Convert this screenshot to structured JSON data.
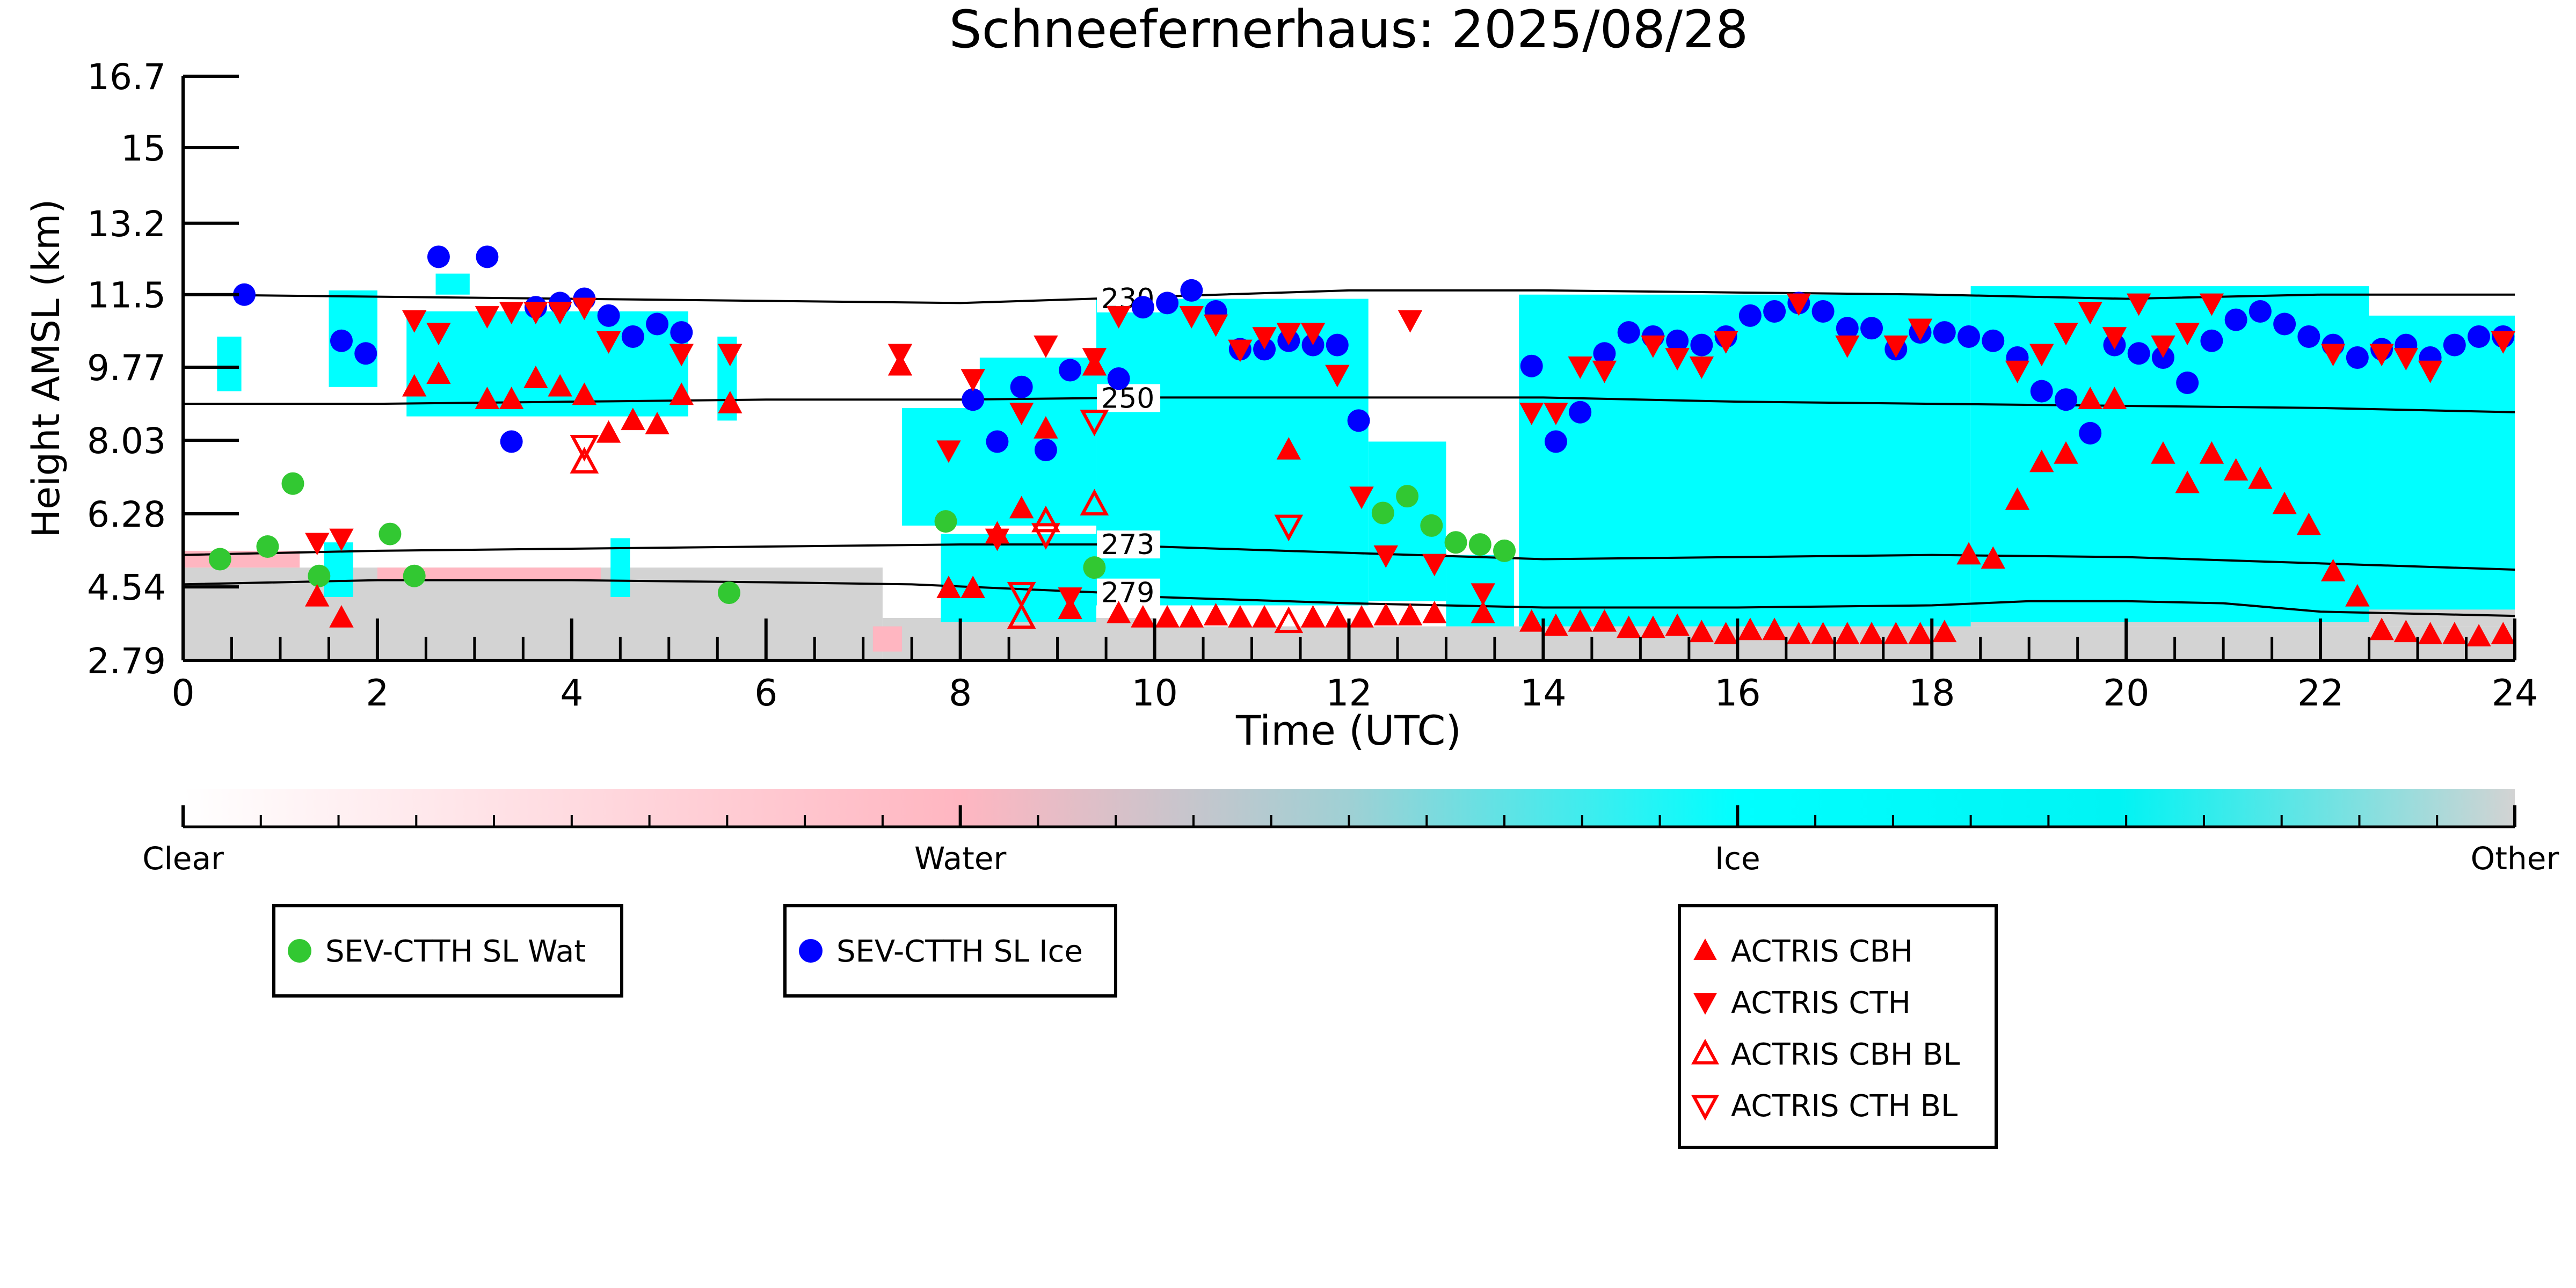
{
  "chart_data": {
    "type": "scatter",
    "title": "Schneefernerhaus: 2025/08/28",
    "xlabel": "Time (UTC)",
    "ylabel": "Height AMSL (km)",
    "xlim": [
      0,
      24
    ],
    "ylim": [
      2.79,
      16.7
    ],
    "x_ticks": [
      0,
      2,
      4,
      6,
      8,
      10,
      12,
      14,
      16,
      18,
      20,
      22,
      24
    ],
    "y_ticks": [
      2.79,
      4.54,
      6.28,
      8.03,
      9.77,
      11.5,
      13.2,
      15.0,
      16.7
    ],
    "grid": false,
    "background_classification": {
      "description_colors": {
        "clear": "#ffffff",
        "water": "#ffb6c1",
        "ice": "#00ffff",
        "other": "#d3d3d3"
      },
      "ice_regions": [
        {
          "x": [
            0.35,
            0.6
          ],
          "y": [
            9.2,
            10.5
          ]
        },
        {
          "x": [
            1.45,
            1.75
          ],
          "y": [
            4.3,
            5.6
          ]
        },
        {
          "x": [
            1.5,
            2.0
          ],
          "y": [
            9.3,
            11.6
          ]
        },
        {
          "x": [
            2.3,
            5.2
          ],
          "y": [
            8.6,
            11.1
          ]
        },
        {
          "x": [
            2.6,
            2.95
          ],
          "y": [
            11.5,
            12.0
          ]
        },
        {
          "x": [
            4.4,
            4.6
          ],
          "y": [
            4.3,
            5.7
          ]
        },
        {
          "x": [
            5.5,
            5.7
          ],
          "y": [
            8.5,
            10.5
          ]
        },
        {
          "x": [
            7.4,
            8.3
          ],
          "y": [
            6.0,
            8.8
          ]
        },
        {
          "x": [
            7.8,
            9.4
          ],
          "y": [
            3.7,
            5.8
          ]
        },
        {
          "x": [
            8.2,
            9.4
          ],
          "y": [
            6.0,
            10.0
          ]
        },
        {
          "x": [
            9.4,
            12.2
          ],
          "y": [
            4.1,
            11.4
          ]
        },
        {
          "x": [
            12.2,
            13.0
          ],
          "y": [
            4.2,
            8.0
          ]
        },
        {
          "x": [
            13.0,
            13.7
          ],
          "y": [
            3.6,
            5.3
          ]
        },
        {
          "x": [
            13.75,
            18.4
          ],
          "y": [
            3.6,
            11.5
          ]
        },
        {
          "x": [
            18.4,
            22.5
          ],
          "y": [
            3.7,
            11.7
          ]
        },
        {
          "x": [
            22.5,
            24.0
          ],
          "y": [
            4.0,
            11.0
          ]
        }
      ],
      "other_regions": [
        {
          "x": [
            0.0,
            7.2
          ],
          "y": [
            2.79,
            5.0
          ]
        },
        {
          "x": [
            7.2,
            10.0
          ],
          "y": [
            2.79,
            3.8
          ]
        },
        {
          "x": [
            10.0,
            24.0
          ],
          "y": [
            2.79,
            3.6
          ]
        },
        {
          "x": [
            18.4,
            22.4
          ],
          "y": [
            3.6,
            4.3
          ]
        },
        {
          "x": [
            22.2,
            24.0
          ],
          "y": [
            3.6,
            4.8
          ]
        }
      ],
      "water_regions": [
        {
          "x": [
            0.0,
            1.2
          ],
          "y": [
            5.0,
            5.4
          ]
        },
        {
          "x": [
            2.0,
            4.3
          ],
          "y": [
            4.7,
            5.0
          ]
        },
        {
          "x": [
            7.1,
            7.4
          ],
          "y": [
            3.0,
            3.6
          ]
        }
      ]
    },
    "isotherms": [
      {
        "label": "230",
        "label_x": 9.45,
        "x": [
          0,
          4,
          8,
          10,
          12,
          14,
          16,
          18,
          20,
          22,
          24
        ],
        "y": [
          11.5,
          11.4,
          11.3,
          11.45,
          11.6,
          11.6,
          11.55,
          11.5,
          11.4,
          11.5,
          11.5
        ]
      },
      {
        "label": "250",
        "label_x": 9.45,
        "x": [
          0,
          2,
          4,
          6,
          8,
          10,
          12,
          14,
          16,
          18,
          20,
          22,
          24
        ],
        "y": [
          8.9,
          8.9,
          8.95,
          9.0,
          9.0,
          9.05,
          9.05,
          9.05,
          8.95,
          8.9,
          8.85,
          8.8,
          8.7
        ]
      },
      {
        "label": "273",
        "label_x": 9.45,
        "x": [
          0,
          2,
          4,
          6,
          8,
          9.5,
          10,
          12,
          14,
          16,
          18,
          20,
          22,
          24
        ],
        "y": [
          5.3,
          5.4,
          5.45,
          5.5,
          5.55,
          5.55,
          5.5,
          5.35,
          5.2,
          5.25,
          5.3,
          5.25,
          5.1,
          4.95
        ]
      },
      {
        "label": "279",
        "label_x": 9.45,
        "x": [
          0,
          2,
          4,
          6,
          7.5,
          8.5,
          9.5,
          10,
          12,
          14,
          16,
          18,
          19,
          20,
          21,
          22,
          24
        ],
        "y": [
          4.6,
          4.7,
          4.7,
          4.65,
          4.6,
          4.5,
          4.4,
          4.3,
          4.15,
          4.05,
          4.05,
          4.1,
          4.2,
          4.2,
          4.15,
          3.95,
          3.85
        ]
      }
    ],
    "series": [
      {
        "name": "SEV-CTTH SL Wat",
        "marker": "circle",
        "color": "#32c832",
        "filled": true,
        "x": [
          0.38,
          0.87,
          1.13,
          1.4,
          2.13,
          2.38,
          5.62,
          7.85,
          9.38,
          12.35,
          12.6,
          12.85,
          13.1,
          13.35,
          13.6
        ],
        "y": [
          5.2,
          5.5,
          7.0,
          4.8,
          5.8,
          4.8,
          4.4,
          6.1,
          5.0,
          6.3,
          6.7,
          6.0,
          5.6,
          5.55,
          5.4
        ]
      },
      {
        "name": "SEV-CTTH SL Ice",
        "marker": "circle",
        "color": "#0000ff",
        "filled": true,
        "x": [
          0.63,
          1.63,
          1.88,
          2.63,
          3.13,
          3.38,
          3.63,
          3.88,
          4.13,
          4.38,
          4.63,
          4.88,
          5.13,
          8.13,
          8.38,
          8.63,
          8.88,
          9.13,
          9.63,
          9.88,
          10.13,
          10.38,
          10.63,
          10.88,
          11.13,
          11.38,
          11.63,
          11.88,
          12.1,
          13.88,
          14.13,
          14.38,
          14.63,
          14.88,
          15.13,
          15.38,
          15.63,
          15.88,
          16.13,
          16.38,
          16.63,
          16.88,
          17.13,
          17.38,
          17.63,
          17.88,
          18.13,
          18.38,
          18.63,
          18.88,
          19.13,
          19.38,
          19.63,
          19.88,
          20.13,
          20.38,
          20.63,
          20.88,
          21.13,
          21.38,
          21.63,
          21.88,
          22.13,
          22.38,
          22.63,
          22.88,
          23.13,
          23.38,
          23.63,
          23.88
        ],
        "y": [
          11.5,
          10.4,
          10.1,
          12.4,
          12.4,
          8.0,
          11.2,
          11.3,
          11.4,
          11.0,
          10.5,
          10.8,
          10.6,
          9.0,
          8.0,
          9.3,
          7.8,
          9.7,
          9.5,
          11.2,
          11.3,
          11.6,
          11.1,
          10.2,
          10.2,
          10.4,
          10.3,
          10.3,
          8.5,
          9.8,
          8.0,
          8.7,
          10.1,
          10.6,
          10.5,
          10.4,
          10.3,
          10.5,
          11.0,
          11.1,
          11.3,
          11.1,
          10.7,
          10.7,
          10.2,
          10.6,
          10.6,
          10.5,
          10.4,
          10.0,
          9.2,
          9.0,
          8.2,
          10.3,
          10.1,
          10.0,
          9.4,
          10.4,
          10.9,
          11.1,
          10.8,
          10.5,
          10.3,
          10.0,
          10.2,
          10.3,
          10.0,
          10.3,
          10.5,
          10.5
        ]
      },
      {
        "name": "ACTRIS CBH",
        "marker": "triangle-up",
        "color": "#ff0000",
        "filled": true,
        "x": [
          1.38,
          1.63,
          2.38,
          2.63,
          3.13,
          3.38,
          3.63,
          3.88,
          4.13,
          4.38,
          4.63,
          4.88,
          5.13,
          5.63,
          7.38,
          7.88,
          8.13,
          8.38,
          8.63,
          8.88,
          9.13,
          9.38,
          9.63,
          9.88,
          10.13,
          10.38,
          10.63,
          10.88,
          11.13,
          11.38,
          11.63,
          11.88,
          12.13,
          12.38,
          12.63,
          12.88,
          13.38,
          13.88,
          14.13,
          14.38,
          14.63,
          14.88,
          15.13,
          15.38,
          15.63,
          15.88,
          16.13,
          16.38,
          16.63,
          16.88,
          17.13,
          17.38,
          17.63,
          17.88,
          18.13,
          18.38,
          18.63,
          18.88,
          19.13,
          19.38,
          19.63,
          19.88,
          20.38,
          20.63,
          20.88,
          21.13,
          21.38,
          21.63,
          21.88,
          22.13,
          22.38,
          22.63,
          22.88,
          23.13,
          23.38,
          23.63,
          23.88
        ],
        "y": [
          4.3,
          3.8,
          9.3,
          9.6,
          9.0,
          9.0,
          9.5,
          9.3,
          9.1,
          8.2,
          8.5,
          8.4,
          9.1,
          8.9,
          9.8,
          4.5,
          4.5,
          5.8,
          6.4,
          8.3,
          4.0,
          9.8,
          3.9,
          3.8,
          3.8,
          3.8,
          3.85,
          3.8,
          3.8,
          7.8,
          3.8,
          3.8,
          3.8,
          3.85,
          3.85,
          3.9,
          3.9,
          3.7,
          3.6,
          3.7,
          3.7,
          3.55,
          3.55,
          3.6,
          3.45,
          3.4,
          3.5,
          3.5,
          3.4,
          3.4,
          3.4,
          3.4,
          3.4,
          3.4,
          3.45,
          5.3,
          5.2,
          6.6,
          7.5,
          7.7,
          9.0,
          9.0,
          7.7,
          7.0,
          7.7,
          7.3,
          7.1,
          6.5,
          6.0,
          4.9,
          4.3,
          3.5,
          3.45,
          3.4,
          3.4,
          3.35,
          3.4
        ]
      },
      {
        "name": "ACTRIS CTH",
        "marker": "triangle-down",
        "color": "#ff0000",
        "filled": true,
        "x": [
          1.38,
          1.63,
          2.38,
          2.63,
          3.13,
          3.38,
          3.63,
          3.88,
          4.13,
          4.38,
          5.13,
          5.63,
          7.38,
          7.88,
          8.13,
          8.38,
          8.63,
          8.88,
          9.13,
          9.38,
          9.63,
          10.38,
          10.63,
          10.88,
          11.13,
          11.38,
          11.63,
          11.88,
          12.13,
          12.38,
          12.63,
          12.88,
          13.38,
          13.88,
          14.13,
          14.38,
          14.63,
          15.13,
          15.38,
          15.63,
          15.88,
          16.63,
          17.13,
          17.63,
          17.88,
          18.88,
          19.13,
          19.38,
          19.63,
          19.88,
          20.13,
          20.38,
          20.63,
          20.88,
          22.13,
          22.63,
          22.88,
          23.13,
          23.88
        ],
        "y": [
          5.6,
          5.7,
          10.9,
          10.6,
          11.0,
          11.1,
          11.1,
          11.1,
          11.2,
          10.4,
          10.1,
          10.1,
          10.1,
          7.8,
          9.5,
          5.7,
          8.7,
          10.3,
          4.3,
          10.0,
          11.0,
          11.0,
          10.8,
          10.2,
          10.5,
          10.6,
          10.6,
          9.6,
          6.7,
          5.3,
          10.9,
          5.1,
          4.4,
          8.7,
          8.7,
          9.8,
          9.7,
          10.3,
          10.0,
          9.8,
          10.4,
          11.3,
          10.3,
          10.3,
          10.7,
          9.7,
          10.1,
          10.6,
          11.1,
          10.5,
          11.3,
          10.3,
          10.6,
          11.3,
          10.1,
          10.1,
          10.0,
          9.7,
          10.4
        ]
      },
      {
        "name": "ACTRIS CBH BL",
        "marker": "triangle-up",
        "color": "#ff0000",
        "filled": false,
        "x": [
          4.13,
          8.63,
          8.88,
          9.38,
          11.38
        ],
        "y": [
          7.5,
          3.8,
          6.1,
          6.5,
          3.7
        ]
      },
      {
        "name": "ACTRIS CTH BL",
        "marker": "triangle-down",
        "color": "#ff0000",
        "filled": false,
        "x": [
          4.13,
          8.63,
          8.88,
          9.38,
          11.38
        ],
        "y": [
          7.9,
          4.4,
          5.8,
          8.5,
          6.0
        ]
      }
    ],
    "colorbar": {
      "labels": [
        "Clear",
        "Water",
        "Ice",
        "Other"
      ],
      "colors": [
        "#ffffff",
        "#ffb6c1",
        "#00ffff",
        "#d3d3d3"
      ]
    },
    "legends": [
      {
        "entries": [
          {
            "label": "SEV-CTTH SL Wat",
            "series": 0
          }
        ]
      },
      {
        "entries": [
          {
            "label": "SEV-CTTH SL Ice",
            "series": 1
          }
        ]
      },
      {
        "entries": [
          {
            "label": "ACTRIS CBH",
            "series": 2
          },
          {
            "label": "ACTRIS CTH",
            "series": 3
          },
          {
            "label": "ACTRIS CBH BL",
            "series": 4
          },
          {
            "label": "ACTRIS CTH BL",
            "series": 5
          }
        ]
      }
    ]
  }
}
